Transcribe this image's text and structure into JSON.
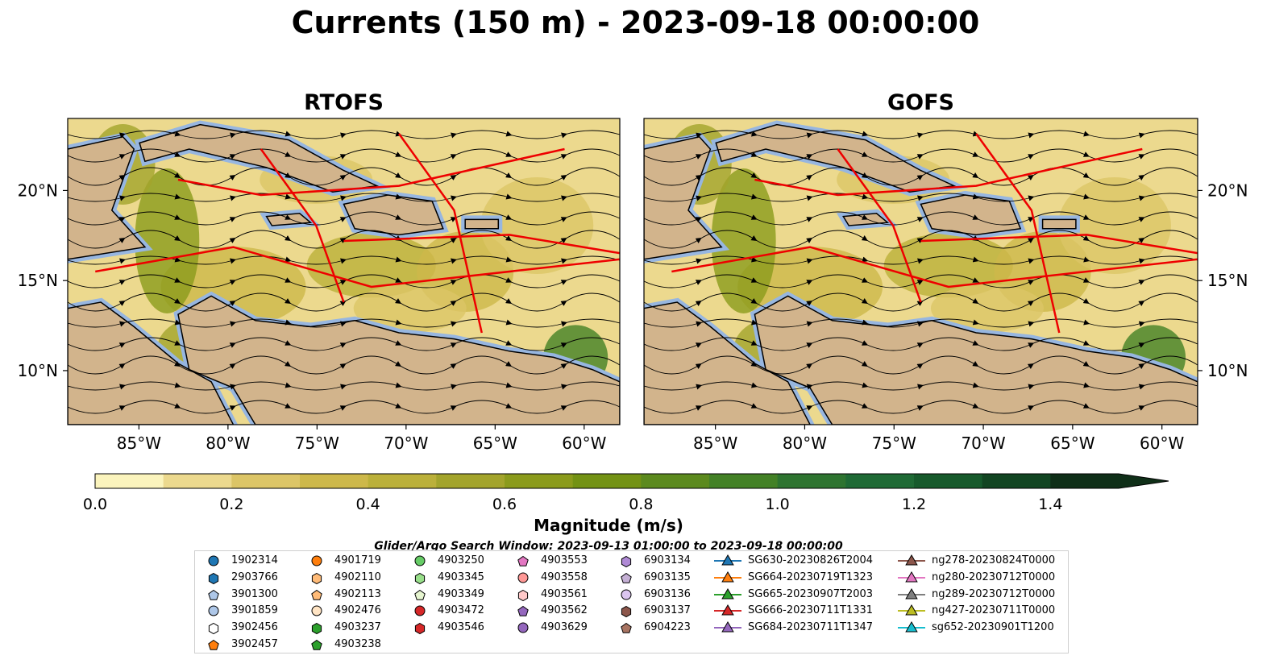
{
  "title": "Currents (150 m) - 2023-09-18 00:00:00",
  "panels": [
    {
      "title": "RTOFS"
    },
    {
      "title": "GOFS"
    }
  ],
  "axes": {
    "lon_ticks": [
      "85°W",
      "80°W",
      "75°W",
      "70°W",
      "65°W",
      "60°W"
    ],
    "lat_ticks": [
      "20°N",
      "15°N",
      "10°N"
    ]
  },
  "colorbar": {
    "label": "Magnitude (m/s)",
    "range": [
      0.0,
      1.5
    ],
    "step": 0.1,
    "extend": "max",
    "tick_labels": [
      "0.0",
      "0.2",
      "0.4",
      "0.6",
      "0.8",
      "1.0",
      "1.2",
      "1.4"
    ],
    "colors": [
      "#fbf4bd",
      "#ecd98e",
      "#dcc567",
      "#cdb84a",
      "#bbb03a",
      "#a3a42c",
      "#8b9b1c",
      "#739214",
      "#5c8a1e",
      "#438126",
      "#2e7430",
      "#1f6a35",
      "#175a2c",
      "#124522",
      "#0f2f18"
    ]
  },
  "legend": {
    "title": "Glider/Argo Search Window: 2023-09-13 01:00:00 to 2023-09-18 00:00:00",
    "columns": [
      [
        {
          "label": "1902314",
          "marker": "circle",
          "color": "#1f77b4"
        },
        {
          "label": "2903766",
          "marker": "hexagon",
          "color": "#1f77b4"
        },
        {
          "label": "3901300",
          "marker": "pentagon",
          "color": "#aec7e8"
        },
        {
          "label": "3901859",
          "marker": "circle",
          "color": "#aec7e8"
        },
        {
          "label": "3902456",
          "marker": "hexagon",
          "color": "#ffffff"
        },
        {
          "label": "3902457",
          "marker": "pentagon",
          "color": "#ff7f0e"
        }
      ],
      [
        {
          "label": "4901719",
          "marker": "circle",
          "color": "#ff7f0e"
        },
        {
          "label": "4902110",
          "marker": "hexagon",
          "color": "#ffbb78"
        },
        {
          "label": "4902113",
          "marker": "pentagon",
          "color": "#ffbb78"
        },
        {
          "label": "4902476",
          "marker": "circle",
          "color": "#ffe4c4"
        },
        {
          "label": "4903237",
          "marker": "hexagon",
          "color": "#2ca02c"
        },
        {
          "label": "4903238",
          "marker": "pentagon",
          "color": "#2ca02c"
        }
      ],
      [
        {
          "label": "4903250",
          "marker": "circle",
          "color": "#66cc66"
        },
        {
          "label": "4903345",
          "marker": "hexagon",
          "color": "#98df8a"
        },
        {
          "label": "4903349",
          "marker": "pentagon",
          "color": "#e6f5d0"
        },
        {
          "label": "4903472",
          "marker": "circle",
          "color": "#d62728"
        },
        {
          "label": "4903546",
          "marker": "hexagon",
          "color": "#d62728"
        }
      ],
      [
        {
          "label": "4903553",
          "marker": "pentagon",
          "color": "#e377c2"
        },
        {
          "label": "4903558",
          "marker": "circle",
          "color": "#ff9896"
        },
        {
          "label": "4903561",
          "marker": "hexagon",
          "color": "#ffc9c9"
        },
        {
          "label": "4903562",
          "marker": "pentagon",
          "color": "#9467bd"
        },
        {
          "label": "4903629",
          "marker": "circle",
          "color": "#9467bd"
        }
      ],
      [
        {
          "label": "6903134",
          "marker": "hexagon",
          "color": "#b08ad6"
        },
        {
          "label": "6903135",
          "marker": "pentagon",
          "color": "#c5b0d5"
        },
        {
          "label": "6903136",
          "marker": "circle",
          "color": "#dcc6f0"
        },
        {
          "label": "6903137",
          "marker": "hexagon",
          "color": "#8c564b"
        },
        {
          "label": "6904223",
          "marker": "pentagon",
          "color": "#a87462"
        }
      ],
      [
        {
          "label": "SG630-20230826T2004",
          "marker": "triangle",
          "color": "#1f77b4"
        },
        {
          "label": "SG664-20230719T1323",
          "marker": "triangle",
          "color": "#ff7f0e"
        },
        {
          "label": "SG665-20230907T2003",
          "marker": "triangle",
          "color": "#2ca02c"
        },
        {
          "label": "SG666-20230711T1331",
          "marker": "triangle",
          "color": "#d62728"
        },
        {
          "label": "SG684-20230711T1347",
          "marker": "triangle",
          "color": "#9467bd"
        }
      ],
      [
        {
          "label": "ng278-20230824T0000",
          "marker": "triangle",
          "color": "#8c564b"
        },
        {
          "label": "ng280-20230712T0000",
          "marker": "triangle",
          "color": "#e377c2"
        },
        {
          "label": "ng289-20230712T0000",
          "marker": "triangle",
          "color": "#7f7f7f"
        },
        {
          "label": "ng427-20230711T0000",
          "marker": "triangle",
          "color": "#bcbd22"
        },
        {
          "label": "sg652-20230901T1200",
          "marker": "triangle",
          "color": "#17becf"
        }
      ]
    ]
  },
  "map_colors": {
    "land": "#d2b48c",
    "shelf": "#97b6e0",
    "eez_lines": "#ee0000",
    "streamlines": "#000000",
    "rivers": "#9ab0d0"
  }
}
